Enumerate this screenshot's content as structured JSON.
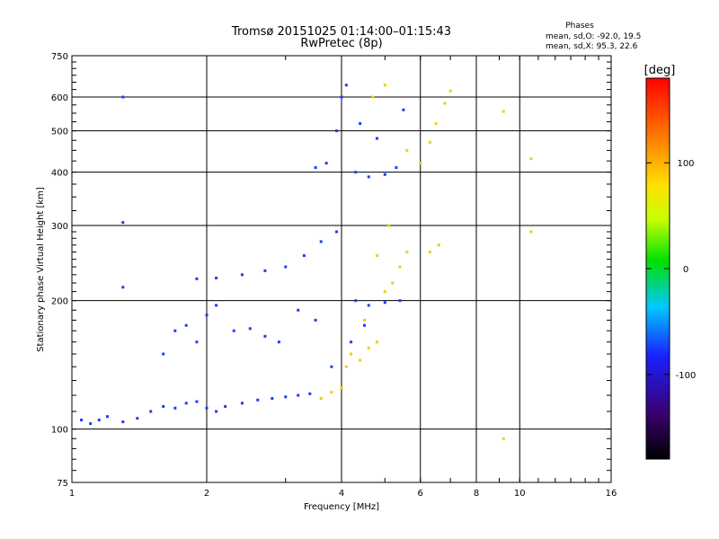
{
  "chart_data": {
    "type": "scatter",
    "title": "Tromsø 20151025 01:14:00–01:15:43",
    "subtitle": "RwPretec (8p)",
    "xlabel": "Frequency [MHz]",
    "ylabel": "Stationary phase Virtual Height [km]",
    "x_scale": "log",
    "y_scale": "log",
    "xlim": [
      1,
      16
    ],
    "ylim": [
      75,
      750
    ],
    "x_ticks": [
      1,
      2,
      4,
      6,
      8,
      10,
      16
    ],
    "x_tick_labels": [
      "1",
      "2",
      "4",
      "6",
      "8",
      "10",
      "16"
    ],
    "y_ticks": [
      75,
      100,
      200,
      300,
      400,
      500,
      600,
      750
    ],
    "y_tick_labels": [
      "75",
      "100",
      "200",
      "300",
      "400",
      "500",
      "600",
      "750"
    ],
    "grid": true,
    "legend_placement": "top-right",
    "legend": {
      "heading": "Phases",
      "lines": [
        "mean, sd,O:  -92.0, 19.5",
        "mean, sd,X:  95.3, 22.6"
      ]
    },
    "colorbar": {
      "title": "[deg]",
      "range": [
        -180,
        180
      ],
      "ticks": [
        100,
        0,
        -100
      ],
      "tick_labels": [
        "100",
        "0",
        "-100"
      ]
    },
    "series": [
      {
        "name": "O",
        "color": "#1a3cff",
        "points": [
          {
            "x": 1.05,
            "y": 105
          },
          {
            "x": 1.1,
            "y": 103
          },
          {
            "x": 1.15,
            "y": 105
          },
          {
            "x": 1.2,
            "y": 107
          },
          {
            "x": 1.3,
            "y": 104
          },
          {
            "x": 1.4,
            "y": 106
          },
          {
            "x": 1.5,
            "y": 110
          },
          {
            "x": 1.6,
            "y": 113
          },
          {
            "x": 1.7,
            "y": 112
          },
          {
            "x": 1.8,
            "y": 115
          },
          {
            "x": 1.9,
            "y": 116
          },
          {
            "x": 2.0,
            "y": 112
          },
          {
            "x": 2.1,
            "y": 110
          },
          {
            "x": 2.2,
            "y": 113
          },
          {
            "x": 2.4,
            "y": 115
          },
          {
            "x": 2.6,
            "y": 117
          },
          {
            "x": 2.8,
            "y": 118
          },
          {
            "x": 3.0,
            "y": 119
          },
          {
            "x": 3.2,
            "y": 120
          },
          {
            "x": 3.4,
            "y": 121
          },
          {
            "x": 1.6,
            "y": 150
          },
          {
            "x": 1.7,
            "y": 170
          },
          {
            "x": 1.8,
            "y": 175
          },
          {
            "x": 1.9,
            "y": 160
          },
          {
            "x": 2.0,
            "y": 185
          },
          {
            "x": 2.1,
            "y": 195
          },
          {
            "x": 2.3,
            "y": 170
          },
          {
            "x": 2.5,
            "y": 172
          },
          {
            "x": 2.7,
            "y": 165
          },
          {
            "x": 2.9,
            "y": 160
          },
          {
            "x": 3.2,
            "y": 190
          },
          {
            "x": 3.5,
            "y": 180
          },
          {
            "x": 1.9,
            "y": 225
          },
          {
            "x": 2.1,
            "y": 226
          },
          {
            "x": 2.4,
            "y": 230
          },
          {
            "x": 2.7,
            "y": 235
          },
          {
            "x": 3.0,
            "y": 240
          },
          {
            "x": 3.3,
            "y": 255
          },
          {
            "x": 3.6,
            "y": 275
          },
          {
            "x": 3.9,
            "y": 290
          },
          {
            "x": 4.3,
            "y": 200
          },
          {
            "x": 4.6,
            "y": 195
          },
          {
            "x": 5.0,
            "y": 198
          },
          {
            "x": 5.4,
            "y": 200
          },
          {
            "x": 4.2,
            "y": 160
          },
          {
            "x": 4.5,
            "y": 175
          },
          {
            "x": 3.8,
            "y": 140
          },
          {
            "x": 3.5,
            "y": 410
          },
          {
            "x": 3.7,
            "y": 420
          },
          {
            "x": 3.9,
            "y": 500
          },
          {
            "x": 4.0,
            "y": 600
          },
          {
            "x": 4.1,
            "y": 640
          },
          {
            "x": 4.3,
            "y": 400
          },
          {
            "x": 4.6,
            "y": 390
          },
          {
            "x": 5.0,
            "y": 395
          },
          {
            "x": 5.3,
            "y": 410
          },
          {
            "x": 4.4,
            "y": 520
          },
          {
            "x": 4.8,
            "y": 480
          },
          {
            "x": 5.5,
            "y": 560
          },
          {
            "x": 1.3,
            "y": 600
          },
          {
            "x": 1.3,
            "y": 305
          },
          {
            "x": 1.3,
            "y": 215
          }
        ]
      },
      {
        "name": "X",
        "color": "#f0d000",
        "points": [
          {
            "x": 3.6,
            "y": 118
          },
          {
            "x": 3.8,
            "y": 122
          },
          {
            "x": 4.0,
            "y": 125
          },
          {
            "x": 4.1,
            "y": 140
          },
          {
            "x": 4.2,
            "y": 150
          },
          {
            "x": 4.4,
            "y": 145
          },
          {
            "x": 4.6,
            "y": 155
          },
          {
            "x": 4.8,
            "y": 160
          },
          {
            "x": 4.5,
            "y": 180
          },
          {
            "x": 5.0,
            "y": 210
          },
          {
            "x": 5.2,
            "y": 220
          },
          {
            "x": 5.4,
            "y": 240
          },
          {
            "x": 5.6,
            "y": 260
          },
          {
            "x": 4.8,
            "y": 255
          },
          {
            "x": 5.1,
            "y": 300
          },
          {
            "x": 6.3,
            "y": 260
          },
          {
            "x": 6.6,
            "y": 270
          },
          {
            "x": 4.7,
            "y": 600
          },
          {
            "x": 5.0,
            "y": 640
          },
          {
            "x": 5.6,
            "y": 450
          },
          {
            "x": 6.0,
            "y": 420
          },
          {
            "x": 6.3,
            "y": 470
          },
          {
            "x": 6.5,
            "y": 520
          },
          {
            "x": 6.8,
            "y": 580
          },
          {
            "x": 7.0,
            "y": 620
          },
          {
            "x": 9.2,
            "y": 555
          },
          {
            "x": 10.6,
            "y": 430
          },
          {
            "x": 10.6,
            "y": 290
          },
          {
            "x": 9.2,
            "y": 95
          }
        ]
      }
    ]
  }
}
